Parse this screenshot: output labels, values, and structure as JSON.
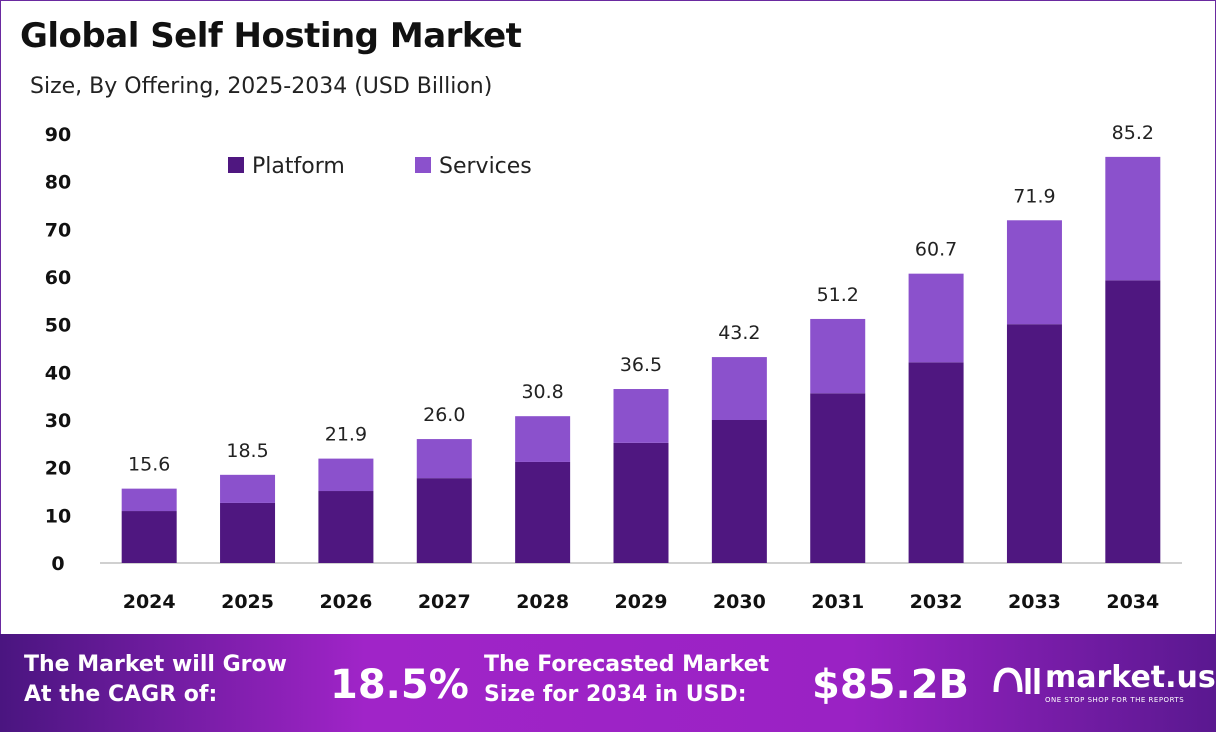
{
  "title": "Global Self Hosting Market",
  "subtitle": "Size, By Offering, 2025-2034 (USD Billion)",
  "colors": {
    "platform": "#4f1780",
    "services": "#8b51cc"
  },
  "chart_data": {
    "type": "bar",
    "stacked": true,
    "categories": [
      "2024",
      "2025",
      "2026",
      "2027",
      "2028",
      "2029",
      "2030",
      "2031",
      "2032",
      "2033",
      "2034"
    ],
    "series": [
      {
        "name": "Platform",
        "values": [
          10.9,
          12.6,
          15.1,
          17.8,
          21.2,
          25.2,
          30.0,
          35.6,
          42.1,
          50.1,
          59.3
        ]
      },
      {
        "name": "Services",
        "values": [
          4.7,
          5.9,
          6.8,
          8.2,
          9.6,
          11.3,
          13.2,
          15.6,
          18.6,
          21.8,
          25.9
        ]
      }
    ],
    "totals": [
      "15.6",
      "18.5",
      "21.9",
      "26.0",
      "30.8",
      "36.5",
      "43.2",
      "51.2",
      "60.7",
      "71.9",
      "85.2"
    ],
    "ylim": [
      0,
      90
    ],
    "yticks": [
      "0",
      "10",
      "20",
      "30",
      "40",
      "50",
      "60",
      "70",
      "80",
      "90"
    ],
    "grid": false,
    "legend": "top-left"
  },
  "footer": {
    "cagr_label_1": "The Market will Grow",
    "cagr_label_2": "At the CAGR of:",
    "cagr_value": "18.5%",
    "size_label_1": "The Forecasted Market",
    "size_label_2": "Size for 2034 in USD:",
    "size_value": "$85.2B",
    "brand": "market.us",
    "tagline": "ONE STOP SHOP FOR THE REPORTS"
  }
}
